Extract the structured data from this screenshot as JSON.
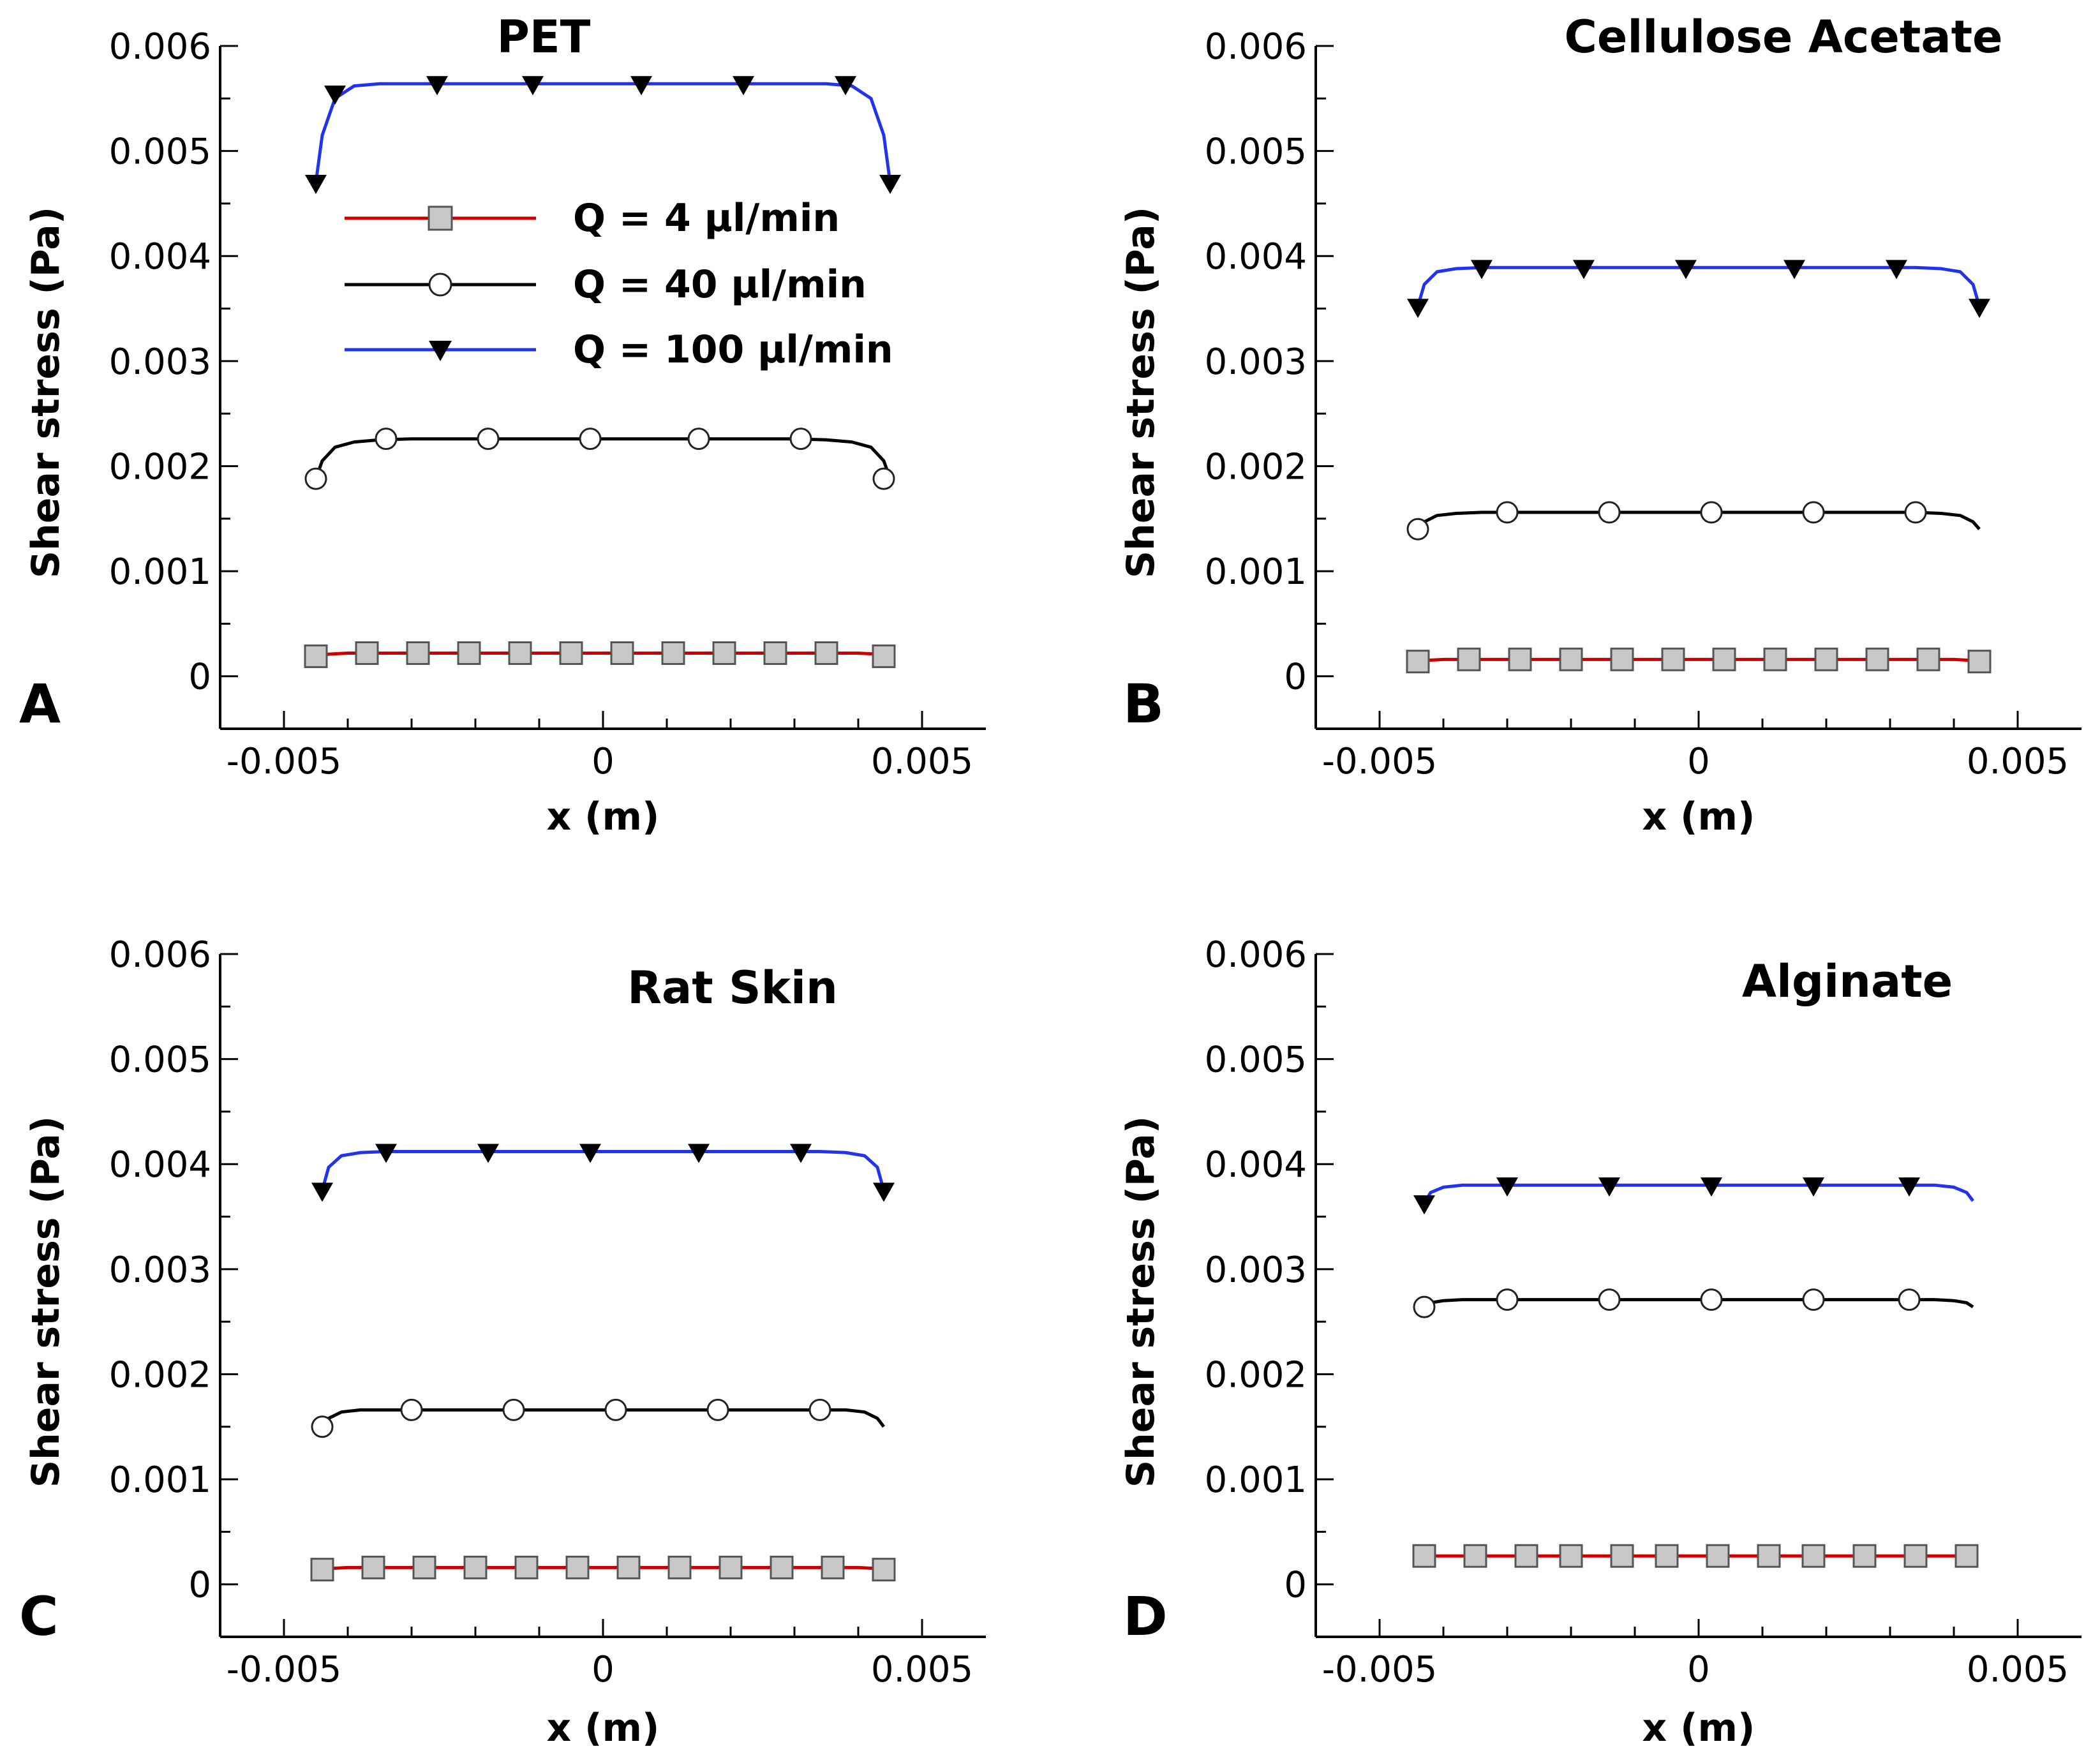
{
  "chart_data": [
    {
      "type": "line",
      "panel": "A",
      "title": "PET",
      "xlabel": "x (m)",
      "ylabel": "Shear stress (Pa)",
      "xlim": [
        -0.006,
        0.006
      ],
      "ylim": [
        -0.0005,
        0.006
      ],
      "xticks": [
        "-0.005",
        "0",
        "0.005"
      ],
      "yticks": [
        "0",
        "0.001",
        "0.002",
        "0.003",
        "0.004",
        "0.005",
        "0.006"
      ],
      "legend": {
        "location": "upper-center",
        "entries": [
          "Q = 4 µl/min",
          "Q = 40 µl/min",
          "Q = 100 µl/min"
        ]
      },
      "series": [
        {
          "name": "Q = 4 µl/min",
          "color": "#cc0000",
          "marker": "square",
          "x": [
            -0.0045,
            -0.0043,
            -0.004,
            -0.0035,
            -0.003,
            -0.0025,
            -0.002,
            -0.001,
            0,
            0.001,
            0.002,
            0.003,
            0.0035,
            0.004,
            0.0043,
            0.0045
          ],
          "y": [
            0.00019,
            0.00021,
            0.00022,
            0.00022,
            0.00022,
            0.00022,
            0.00022,
            0.00022,
            0.00022,
            0.00022,
            0.00022,
            0.00022,
            0.00022,
            0.00022,
            0.00021,
            0.00019
          ],
          "marker_x": [
            -0.0045,
            -0.0037,
            -0.0029,
            -0.0021,
            -0.0013,
            -0.0005,
            0.0003,
            0.0011,
            0.0019,
            0.0027,
            0.0035,
            0.0044
          ],
          "marker_y": [
            0.00019,
            0.00022,
            0.00022,
            0.00022,
            0.00022,
            0.00022,
            0.00022,
            0.00022,
            0.00022,
            0.00022,
            0.00022,
            0.00019
          ]
        },
        {
          "name": "Q = 40 µl/min",
          "color": "#000000",
          "marker": "circle",
          "x": [
            -0.0045,
            -0.0044,
            -0.0042,
            -0.0039,
            -0.0035,
            -0.003,
            -0.002,
            -0.001,
            0,
            0.001,
            0.002,
            0.003,
            0.0035,
            0.0039,
            0.0042,
            0.0044,
            0.0045
          ],
          "y": [
            0.00188,
            0.00205,
            0.00218,
            0.00223,
            0.00225,
            0.00226,
            0.00226,
            0.00226,
            0.00226,
            0.00226,
            0.00226,
            0.00226,
            0.00225,
            0.00223,
            0.00218,
            0.00205,
            0.00188
          ],
          "marker_x": [
            -0.0045,
            -0.0034,
            -0.0018,
            -0.0002,
            0.0015,
            0.0031,
            0.0044
          ],
          "marker_y": [
            0.00188,
            0.00226,
            0.00226,
            0.00226,
            0.00226,
            0.00226,
            0.00188
          ]
        },
        {
          "name": "Q = 100 µl/min",
          "color": "#2233ee",
          "marker": "triangle-down",
          "x": [
            -0.0045,
            -0.0044,
            -0.0042,
            -0.0039,
            -0.0035,
            -0.003,
            -0.002,
            -0.001,
            0,
            0.001,
            0.002,
            0.003,
            0.0035,
            0.0039,
            0.0042,
            0.0044,
            0.0045
          ],
          "y": [
            0.0047,
            0.00515,
            0.0055,
            0.00562,
            0.00564,
            0.00564,
            0.00564,
            0.00564,
            0.00564,
            0.00564,
            0.00564,
            0.00564,
            0.00564,
            0.00562,
            0.0055,
            0.00515,
            0.0047
          ],
          "marker_x": [
            -0.0045,
            -0.0042,
            -0.0026,
            -0.0011,
            0.0006,
            0.0022,
            0.0038,
            0.0045
          ],
          "marker_y": [
            0.0047,
            0.00555,
            0.00564,
            0.00564,
            0.00564,
            0.00564,
            0.00564,
            0.0047
          ]
        }
      ]
    },
    {
      "type": "line",
      "panel": "B",
      "title": "Cellulose Acetate",
      "xlabel": "x (m)",
      "ylabel": "Shear stress (Pa)",
      "xlim": [
        -0.006,
        0.006
      ],
      "ylim": [
        -0.0005,
        0.006
      ],
      "xticks": [
        "-0.005",
        "0",
        "0.005"
      ],
      "yticks": [
        "0",
        "0.001",
        "0.002",
        "0.003",
        "0.004",
        "0.005",
        "0.006"
      ],
      "series": [
        {
          "name": "Q = 4 µl/min",
          "color": "#cc0000",
          "marker": "square",
          "x": [
            -0.0044,
            -0.0043,
            -0.004,
            -0.003,
            -0.002,
            -0.001,
            0,
            0.001,
            0.002,
            0.003,
            0.004,
            0.0043,
            0.0044
          ],
          "y": [
            0.00014,
            0.00015,
            0.00016,
            0.00016,
            0.00016,
            0.00016,
            0.00016,
            0.00016,
            0.00016,
            0.00016,
            0.00016,
            0.00015,
            0.00014
          ],
          "marker_x": [
            -0.0044,
            -0.0036,
            -0.0028,
            -0.002,
            -0.0012,
            -0.0004,
            0.0004,
            0.0012,
            0.002,
            0.0028,
            0.0036,
            0.0044
          ],
          "marker_y": [
            0.00014,
            0.00016,
            0.00016,
            0.00016,
            0.00016,
            0.00016,
            0.00016,
            0.00016,
            0.00016,
            0.00016,
            0.00016,
            0.00014
          ]
        },
        {
          "name": "Q = 40 µl/min",
          "color": "#000000",
          "marker": "circle",
          "x": [
            -0.0044,
            -0.0043,
            -0.0041,
            -0.0038,
            -0.0034,
            -0.003,
            -0.002,
            -0.001,
            0,
            0.001,
            0.002,
            0.003,
            0.0034,
            0.0038,
            0.0041,
            0.0043,
            0.0044
          ],
          "y": [
            0.0014,
            0.00147,
            0.00153,
            0.00155,
            0.00156,
            0.00156,
            0.00156,
            0.00156,
            0.00156,
            0.00156,
            0.00156,
            0.00156,
            0.00156,
            0.00155,
            0.00153,
            0.00147,
            0.0014
          ],
          "marker_x": [
            -0.0044,
            -0.003,
            -0.0014,
            0.0002,
            0.0018,
            0.0034
          ],
          "marker_y": [
            0.0014,
            0.00156,
            0.00156,
            0.00156,
            0.00156,
            0.00156
          ]
        },
        {
          "name": "Q = 100 µl/min",
          "color": "#2233ee",
          "marker": "triangle-down",
          "x": [
            -0.0044,
            -0.0043,
            -0.0041,
            -0.0038,
            -0.0034,
            -0.003,
            -0.002,
            -0.001,
            0,
            0.001,
            0.002,
            0.003,
            0.0034,
            0.0038,
            0.0041,
            0.0043,
            0.0044
          ],
          "y": [
            0.00352,
            0.00373,
            0.00385,
            0.00388,
            0.00389,
            0.00389,
            0.00389,
            0.00389,
            0.00389,
            0.00389,
            0.00389,
            0.00389,
            0.00389,
            0.00388,
            0.00385,
            0.00373,
            0.00352
          ],
          "marker_x": [
            -0.0044,
            -0.0034,
            -0.0018,
            -0.0002,
            0.0015,
            0.0031,
            0.0044
          ],
          "marker_y": [
            0.00352,
            0.00389,
            0.00389,
            0.00389,
            0.00389,
            0.00389,
            0.00352
          ]
        }
      ]
    },
    {
      "type": "line",
      "panel": "C",
      "title": "Rat Skin",
      "xlabel": "x (m)",
      "ylabel": "Shear stress (Pa)",
      "xlim": [
        -0.006,
        0.006
      ],
      "ylim": [
        -0.0005,
        0.006
      ],
      "xticks": [
        "-0.005",
        "0",
        "0.005"
      ],
      "yticks": [
        "0",
        "0.001",
        "0.002",
        "0.003",
        "0.004",
        "0.005",
        "0.006"
      ],
      "series": [
        {
          "name": "Q = 4 µl/min",
          "color": "#cc0000",
          "marker": "square",
          "x": [
            -0.0044,
            -0.0043,
            -0.004,
            -0.003,
            -0.002,
            -0.001,
            0,
            0.001,
            0.002,
            0.003,
            0.004,
            0.0043,
            0.0044
          ],
          "y": [
            0.00014,
            0.00015,
            0.00016,
            0.00016,
            0.00016,
            0.00016,
            0.00016,
            0.00016,
            0.00016,
            0.00016,
            0.00016,
            0.00015,
            0.00014
          ],
          "marker_x": [
            -0.0044,
            -0.0036,
            -0.0028,
            -0.002,
            -0.0012,
            -0.0004,
            0.0004,
            0.0012,
            0.002,
            0.0028,
            0.0036,
            0.0044
          ],
          "marker_y": [
            0.00014,
            0.00016,
            0.00016,
            0.00016,
            0.00016,
            0.00016,
            0.00016,
            0.00016,
            0.00016,
            0.00016,
            0.00016,
            0.00014
          ]
        },
        {
          "name": "Q = 40 µl/min",
          "color": "#000000",
          "marker": "circle",
          "x": [
            -0.0044,
            -0.0043,
            -0.0041,
            -0.0038,
            -0.0034,
            -0.003,
            -0.002,
            -0.001,
            0,
            0.001,
            0.002,
            0.003,
            0.0034,
            0.0038,
            0.0041,
            0.0043,
            0.0044
          ],
          "y": [
            0.0015,
            0.00158,
            0.00164,
            0.00166,
            0.00166,
            0.00166,
            0.00166,
            0.00166,
            0.00166,
            0.00166,
            0.00166,
            0.00166,
            0.00166,
            0.00166,
            0.00164,
            0.00158,
            0.0015
          ],
          "marker_x": [
            -0.0044,
            -0.003,
            -0.0014,
            0.0002,
            0.0018,
            0.0034
          ],
          "marker_y": [
            0.0015,
            0.00166,
            0.00166,
            0.00166,
            0.00166,
            0.00166
          ]
        },
        {
          "name": "Q = 100 µl/min",
          "color": "#2233ee",
          "marker": "triangle-down",
          "x": [
            -0.0044,
            -0.0043,
            -0.0041,
            -0.0038,
            -0.0034,
            -0.003,
            -0.002,
            -0.001,
            0,
            0.001,
            0.002,
            0.003,
            0.0034,
            0.0038,
            0.0041,
            0.0043,
            0.0044
          ],
          "y": [
            0.00375,
            0.00397,
            0.00408,
            0.00411,
            0.00412,
            0.00412,
            0.00412,
            0.00412,
            0.00412,
            0.00412,
            0.00412,
            0.00412,
            0.00412,
            0.00411,
            0.00408,
            0.00397,
            0.00375
          ],
          "marker_x": [
            -0.0044,
            -0.0034,
            -0.0018,
            -0.0002,
            0.0015,
            0.0031,
            0.0044
          ],
          "marker_y": [
            0.00375,
            0.00412,
            0.00412,
            0.00412,
            0.00412,
            0.00412,
            0.00375
          ]
        }
      ]
    },
    {
      "type": "line",
      "panel": "D",
      "title": "Alginate",
      "xlabel": "x (m)",
      "ylabel": "Shear stress (Pa)",
      "xlim": [
        -0.006,
        0.006
      ],
      "ylim": [
        -0.0005,
        0.006
      ],
      "xticks": [
        "-0.005",
        "0",
        "0.005"
      ],
      "yticks": [
        "0",
        "0.001",
        "0.002",
        "0.003",
        "0.004",
        "0.005",
        "0.006"
      ],
      "series": [
        {
          "name": "Q = 4 µl/min",
          "color": "#cc0000",
          "marker": "square",
          "x": [
            -0.0043,
            -0.0042,
            -0.004,
            -0.003,
            -0.002,
            -0.001,
            0,
            0.001,
            0.002,
            0.003,
            0.004,
            0.0042,
            0.0043
          ],
          "y": [
            0.00027,
            0.00027,
            0.00027,
            0.00027,
            0.00027,
            0.00027,
            0.00027,
            0.00027,
            0.00027,
            0.00027,
            0.00027,
            0.00027,
            0.00027
          ],
          "marker_x": [
            -0.0043,
            -0.0035,
            -0.0027,
            -0.002,
            -0.0012,
            -0.0005,
            0.0003,
            0.0011,
            0.0018,
            0.0026,
            0.0034,
            0.0042
          ],
          "marker_y": [
            0.00027,
            0.00027,
            0.00027,
            0.00027,
            0.00027,
            0.00027,
            0.00027,
            0.00027,
            0.00027,
            0.00027,
            0.00027,
            0.00027
          ]
        },
        {
          "name": "Q = 40 µl/min",
          "color": "#000000",
          "marker": "circle",
          "x": [
            -0.0043,
            -0.0042,
            -0.004,
            -0.0037,
            -0.0033,
            -0.003,
            -0.002,
            -0.001,
            0,
            0.001,
            0.002,
            0.003,
            0.0033,
            0.0037,
            0.004,
            0.0042,
            0.0043
          ],
          "y": [
            0.00264,
            0.00268,
            0.0027,
            0.00271,
            0.00271,
            0.00271,
            0.00271,
            0.00271,
            0.00271,
            0.00271,
            0.00271,
            0.00271,
            0.00271,
            0.00271,
            0.0027,
            0.00268,
            0.00264
          ],
          "marker_x": [
            -0.0043,
            -0.003,
            -0.0014,
            0.0002,
            0.0018,
            0.0033
          ],
          "marker_y": [
            0.00264,
            0.00271,
            0.00271,
            0.00271,
            0.00271,
            0.00271
          ]
        },
        {
          "name": "Q = 100 µl/min",
          "color": "#2233ee",
          "marker": "triangle-down",
          "x": [
            -0.0043,
            -0.0042,
            -0.004,
            -0.0037,
            -0.0033,
            -0.003,
            -0.002,
            -0.001,
            0,
            0.001,
            0.002,
            0.003,
            0.0033,
            0.0037,
            0.004,
            0.0042,
            0.0043
          ],
          "y": [
            0.00363,
            0.00373,
            0.00378,
            0.0038,
            0.0038,
            0.0038,
            0.0038,
            0.0038,
            0.0038,
            0.0038,
            0.0038,
            0.0038,
            0.0038,
            0.0038,
            0.00378,
            0.00373,
            0.00365
          ],
          "marker_x": [
            -0.0043,
            -0.003,
            -0.0014,
            0.0002,
            0.0018,
            0.0033
          ],
          "marker_y": [
            0.00363,
            0.0038,
            0.0038,
            0.0038,
            0.0038,
            0.0038
          ]
        }
      ]
    }
  ]
}
